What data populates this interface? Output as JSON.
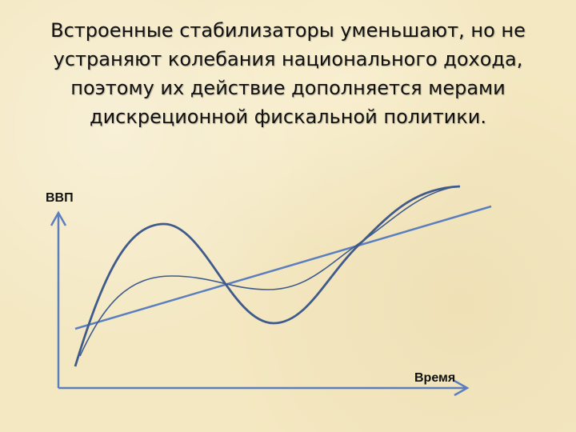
{
  "title": {
    "lines": [
      "Встроенные стабилизаторы уменьшают, но не",
      "устраняют колебания национального дохода,",
      "поэтому их действие дополняется мерами",
      "дискреционной фискальной политики."
    ]
  },
  "axes": {
    "y_label": "ВВП",
    "x_label": "Время"
  },
  "colors": {
    "line": "#5b7fbe",
    "curve": "#3f5b8c",
    "text": "#111111"
  }
}
